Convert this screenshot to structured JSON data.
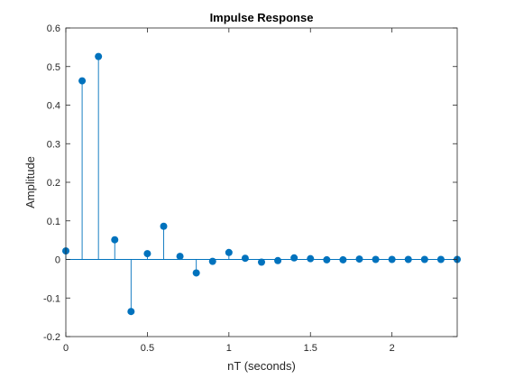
{
  "chart_data": {
    "type": "stem",
    "title": "Impulse Response",
    "xlabel": "nT (seconds)",
    "ylabel": "Amplitude",
    "xlim": [
      0,
      2.4
    ],
    "ylim": [
      -0.2,
      0.6
    ],
    "xticks": [
      0,
      0.5,
      1,
      1.5,
      2
    ],
    "xtick_labels": [
      "0",
      "0.5",
      "1",
      "1.5",
      "2"
    ],
    "yticks": [
      -0.2,
      -0.1,
      0,
      0.1,
      0.2,
      0.3,
      0.4,
      0.5,
      0.6
    ],
    "ytick_labels": [
      "-0.2",
      "-0.1",
      "0",
      "0.1",
      "0.2",
      "0.3",
      "0.4",
      "0.5",
      "0.6"
    ],
    "grid": false,
    "color": "#0072BD",
    "x": [
      0,
      0.1,
      0.2,
      0.3,
      0.4,
      0.5,
      0.6,
      0.7,
      0.8,
      0.9,
      1.0,
      1.1,
      1.2,
      1.3,
      1.4,
      1.5,
      1.6,
      1.7,
      1.8,
      1.9,
      2.0,
      2.1,
      2.2,
      2.3,
      2.4
    ],
    "values": [
      0.022,
      0.463,
      0.526,
      0.051,
      -0.135,
      0.015,
      0.086,
      0.008,
      -0.035,
      -0.005,
      0.018,
      0.003,
      -0.007,
      -0.003,
      0.004,
      0.002,
      -0.001,
      -0.001,
      0.001,
      0.0,
      0.0,
      0.0,
      0.0,
      0.0,
      0.0
    ]
  }
}
